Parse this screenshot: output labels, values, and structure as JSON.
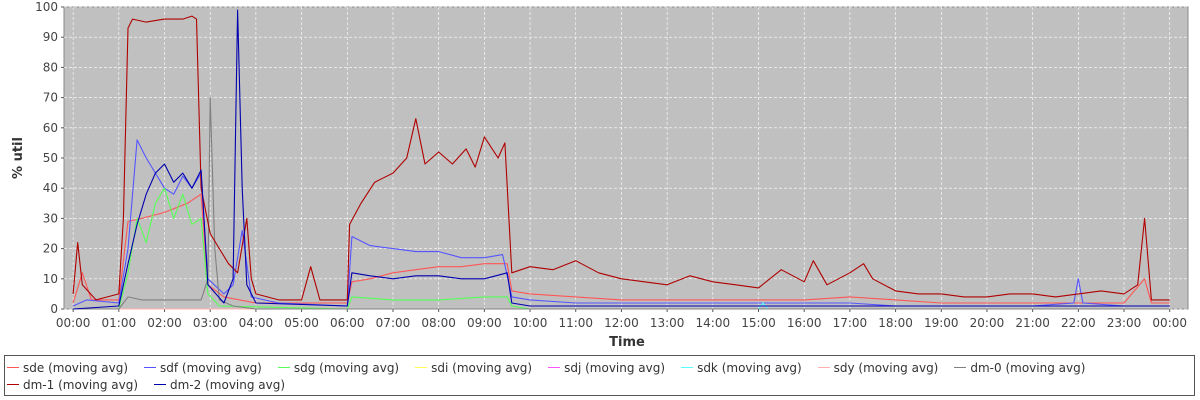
{
  "chart_data": {
    "type": "line",
    "title": "",
    "xlabel": "Time",
    "ylabel": "% util",
    "ylim": [
      0,
      100
    ],
    "xlim_hours": [
      -0.2,
      24.4
    ],
    "yticks": [
      "0",
      "10",
      "20",
      "30",
      "40",
      "50",
      "60",
      "70",
      "80",
      "90",
      "100"
    ],
    "xticks": [
      "00:00",
      "01:00",
      "02:00",
      "03:00",
      "04:00",
      "05:00",
      "06:00",
      "07:00",
      "08:00",
      "09:00",
      "10:00",
      "11:00",
      "12:00",
      "13:00",
      "14:00",
      "15:00",
      "16:00",
      "17:00",
      "18:00",
      "19:00",
      "20:00",
      "21:00",
      "22:00",
      "23:00",
      "00:00"
    ],
    "grid": true,
    "legend_position": "bottom",
    "plot_background": "#c0c0c0",
    "series": [
      {
        "name": "sde (moving avg)",
        "color": "#ff5555",
        "points": [
          [
            0,
            2
          ],
          [
            0.2,
            12
          ],
          [
            0.4,
            3
          ],
          [
            1.0,
            3
          ],
          [
            1.2,
            29
          ],
          [
            1.5,
            30
          ],
          [
            2.0,
            32
          ],
          [
            2.5,
            35
          ],
          [
            2.8,
            38
          ],
          [
            2.95,
            8
          ],
          [
            3.3,
            4
          ],
          [
            4.0,
            2
          ],
          [
            6.0,
            2
          ],
          [
            6.1,
            9
          ],
          [
            6.5,
            10
          ],
          [
            7.0,
            12
          ],
          [
            7.5,
            13
          ],
          [
            8.0,
            14
          ],
          [
            8.5,
            14
          ],
          [
            9.0,
            15
          ],
          [
            9.5,
            15
          ],
          [
            9.6,
            6
          ],
          [
            10,
            5
          ],
          [
            11,
            4
          ],
          [
            12,
            3
          ],
          [
            13,
            3
          ],
          [
            14,
            3
          ],
          [
            15,
            3
          ],
          [
            16,
            3
          ],
          [
            17,
            4
          ],
          [
            18,
            3
          ],
          [
            19,
            2
          ],
          [
            20,
            2
          ],
          [
            21,
            2
          ],
          [
            22,
            2
          ],
          [
            23,
            2
          ],
          [
            23.45,
            10
          ],
          [
            23.6,
            2
          ],
          [
            24,
            2
          ]
        ]
      },
      {
        "name": "sdf (moving avg)",
        "color": "#5555ff",
        "points": [
          [
            0,
            1
          ],
          [
            0.3,
            3
          ],
          [
            1.0,
            2
          ],
          [
            1.2,
            20
          ],
          [
            1.4,
            56
          ],
          [
            1.6,
            50
          ],
          [
            1.8,
            45
          ],
          [
            2.0,
            40
          ],
          [
            2.2,
            38
          ],
          [
            2.4,
            44
          ],
          [
            2.6,
            40
          ],
          [
            2.8,
            45
          ],
          [
            2.95,
            10
          ],
          [
            3.3,
            5
          ],
          [
            3.5,
            8
          ],
          [
            3.7,
            26
          ],
          [
            3.9,
            4
          ],
          [
            4.5,
            2
          ],
          [
            6.0,
            1
          ],
          [
            6.1,
            24
          ],
          [
            6.5,
            21
          ],
          [
            7.0,
            20
          ],
          [
            7.5,
            19
          ],
          [
            8.0,
            19
          ],
          [
            8.5,
            17
          ],
          [
            9.0,
            17
          ],
          [
            9.4,
            18
          ],
          [
            9.6,
            4
          ],
          [
            10,
            3
          ],
          [
            11,
            2
          ],
          [
            12,
            2
          ],
          [
            13,
            2
          ],
          [
            14,
            2
          ],
          [
            15,
            2
          ],
          [
            16,
            2
          ],
          [
            17,
            2
          ],
          [
            18,
            1
          ],
          [
            19,
            1
          ],
          [
            20,
            1
          ],
          [
            21,
            1
          ],
          [
            21.9,
            2
          ],
          [
            22.0,
            10
          ],
          [
            22.1,
            2
          ],
          [
            23,
            1
          ],
          [
            24,
            1
          ]
        ]
      },
      {
        "name": "sdg (moving avg)",
        "color": "#55ff55",
        "points": [
          [
            0,
            0
          ],
          [
            1.0,
            0
          ],
          [
            1.2,
            12
          ],
          [
            1.4,
            30
          ],
          [
            1.6,
            22
          ],
          [
            1.8,
            35
          ],
          [
            2.0,
            40
          ],
          [
            2.2,
            30
          ],
          [
            2.4,
            38
          ],
          [
            2.6,
            28
          ],
          [
            2.8,
            30
          ],
          [
            2.95,
            5
          ],
          [
            3.2,
            1
          ],
          [
            6.0,
            0
          ],
          [
            6.1,
            4
          ],
          [
            7.0,
            3
          ],
          [
            8.0,
            3
          ],
          [
            9.0,
            4
          ],
          [
            9.5,
            4
          ],
          [
            9.6,
            1
          ],
          [
            10,
            0
          ],
          [
            24,
            0
          ]
        ]
      },
      {
        "name": "sdi (moving avg)",
        "color": "#ffff55",
        "points": [
          [
            0,
            0
          ],
          [
            24,
            0
          ]
        ]
      },
      {
        "name": "sdj (moving avg)",
        "color": "#ff55ff",
        "points": [
          [
            0,
            0
          ],
          [
            24,
            0
          ]
        ]
      },
      {
        "name": "sdk (moving avg)",
        "color": "#55ffff",
        "points": [
          [
            0,
            0
          ],
          [
            15,
            0
          ],
          [
            15.1,
            2
          ],
          [
            15.2,
            0
          ],
          [
            24,
            0
          ]
        ]
      },
      {
        "name": "sdy (moving avg)",
        "color": "#ffafaf",
        "points": [
          [
            0,
            0
          ],
          [
            24,
            0
          ]
        ]
      },
      {
        "name": "dm-0 (moving avg)",
        "color": "#808080",
        "points": [
          [
            0,
            0
          ],
          [
            1.0,
            0
          ],
          [
            1.2,
            4
          ],
          [
            1.5,
            3
          ],
          [
            2.0,
            3
          ],
          [
            2.5,
            3
          ],
          [
            2.8,
            3
          ],
          [
            2.95,
            10
          ],
          [
            3.0,
            70
          ],
          [
            3.1,
            20
          ],
          [
            3.2,
            3
          ],
          [
            3.5,
            1
          ],
          [
            4,
            0
          ],
          [
            24,
            0
          ]
        ]
      },
      {
        "name": "dm-1 (moving avg)",
        "color": "#b00000",
        "points": [
          [
            0,
            5
          ],
          [
            0.1,
            22
          ],
          [
            0.2,
            8
          ],
          [
            0.5,
            3
          ],
          [
            1.0,
            5
          ],
          [
            1.1,
            30
          ],
          [
            1.2,
            93
          ],
          [
            1.3,
            96
          ],
          [
            1.6,
            95
          ],
          [
            2.0,
            96
          ],
          [
            2.4,
            96
          ],
          [
            2.6,
            97
          ],
          [
            2.7,
            96
          ],
          [
            2.8,
            40
          ],
          [
            3.0,
            25
          ],
          [
            3.2,
            20
          ],
          [
            3.4,
            15
          ],
          [
            3.6,
            12
          ],
          [
            3.8,
            30
          ],
          [
            3.9,
            10
          ],
          [
            4.0,
            5
          ],
          [
            4.5,
            3
          ],
          [
            5.0,
            3
          ],
          [
            5.2,
            14
          ],
          [
            5.4,
            3
          ],
          [
            6.0,
            3
          ],
          [
            6.05,
            28
          ],
          [
            6.3,
            35
          ],
          [
            6.6,
            42
          ],
          [
            7.0,
            45
          ],
          [
            7.3,
            50
          ],
          [
            7.5,
            63
          ],
          [
            7.7,
            48
          ],
          [
            8.0,
            52
          ],
          [
            8.3,
            48
          ],
          [
            8.6,
            53
          ],
          [
            8.8,
            47
          ],
          [
            9.0,
            57
          ],
          [
            9.3,
            50
          ],
          [
            9.45,
            55
          ],
          [
            9.6,
            12
          ],
          [
            10,
            14
          ],
          [
            10.5,
            13
          ],
          [
            11,
            16
          ],
          [
            11.5,
            12
          ],
          [
            12,
            10
          ],
          [
            12.5,
            9
          ],
          [
            13,
            8
          ],
          [
            13.5,
            11
          ],
          [
            14,
            9
          ],
          [
            14.5,
            8
          ],
          [
            15,
            7
          ],
          [
            15.5,
            13
          ],
          [
            16,
            9
          ],
          [
            16.2,
            16
          ],
          [
            16.5,
            8
          ],
          [
            17,
            12
          ],
          [
            17.3,
            15
          ],
          [
            17.5,
            10
          ],
          [
            18,
            6
          ],
          [
            18.5,
            5
          ],
          [
            19,
            5
          ],
          [
            19.5,
            4
          ],
          [
            20,
            4
          ],
          [
            20.5,
            5
          ],
          [
            21,
            5
          ],
          [
            21.5,
            4
          ],
          [
            22,
            5
          ],
          [
            22.5,
            6
          ],
          [
            23,
            5
          ],
          [
            23.3,
            8
          ],
          [
            23.45,
            30
          ],
          [
            23.6,
            3
          ],
          [
            24,
            3
          ]
        ]
      },
      {
        "name": "dm-2 (moving avg)",
        "color": "#0000b0",
        "points": [
          [
            0,
            0
          ],
          [
            1.0,
            1
          ],
          [
            1.2,
            15
          ],
          [
            1.4,
            28
          ],
          [
            1.6,
            38
          ],
          [
            1.8,
            45
          ],
          [
            2.0,
            48
          ],
          [
            2.2,
            42
          ],
          [
            2.4,
            45
          ],
          [
            2.6,
            40
          ],
          [
            2.8,
            46
          ],
          [
            2.95,
            8
          ],
          [
            3.3,
            2
          ],
          [
            3.5,
            10
          ],
          [
            3.6,
            99
          ],
          [
            3.7,
            40
          ],
          [
            3.8,
            8
          ],
          [
            4.0,
            2
          ],
          [
            6.0,
            1
          ],
          [
            6.1,
            12
          ],
          [
            6.5,
            11
          ],
          [
            7.0,
            10
          ],
          [
            7.5,
            11
          ],
          [
            8.0,
            11
          ],
          [
            8.5,
            10
          ],
          [
            9.0,
            10
          ],
          [
            9.5,
            12
          ],
          [
            9.6,
            2
          ],
          [
            10,
            1
          ],
          [
            24,
            1
          ]
        ]
      }
    ]
  }
}
